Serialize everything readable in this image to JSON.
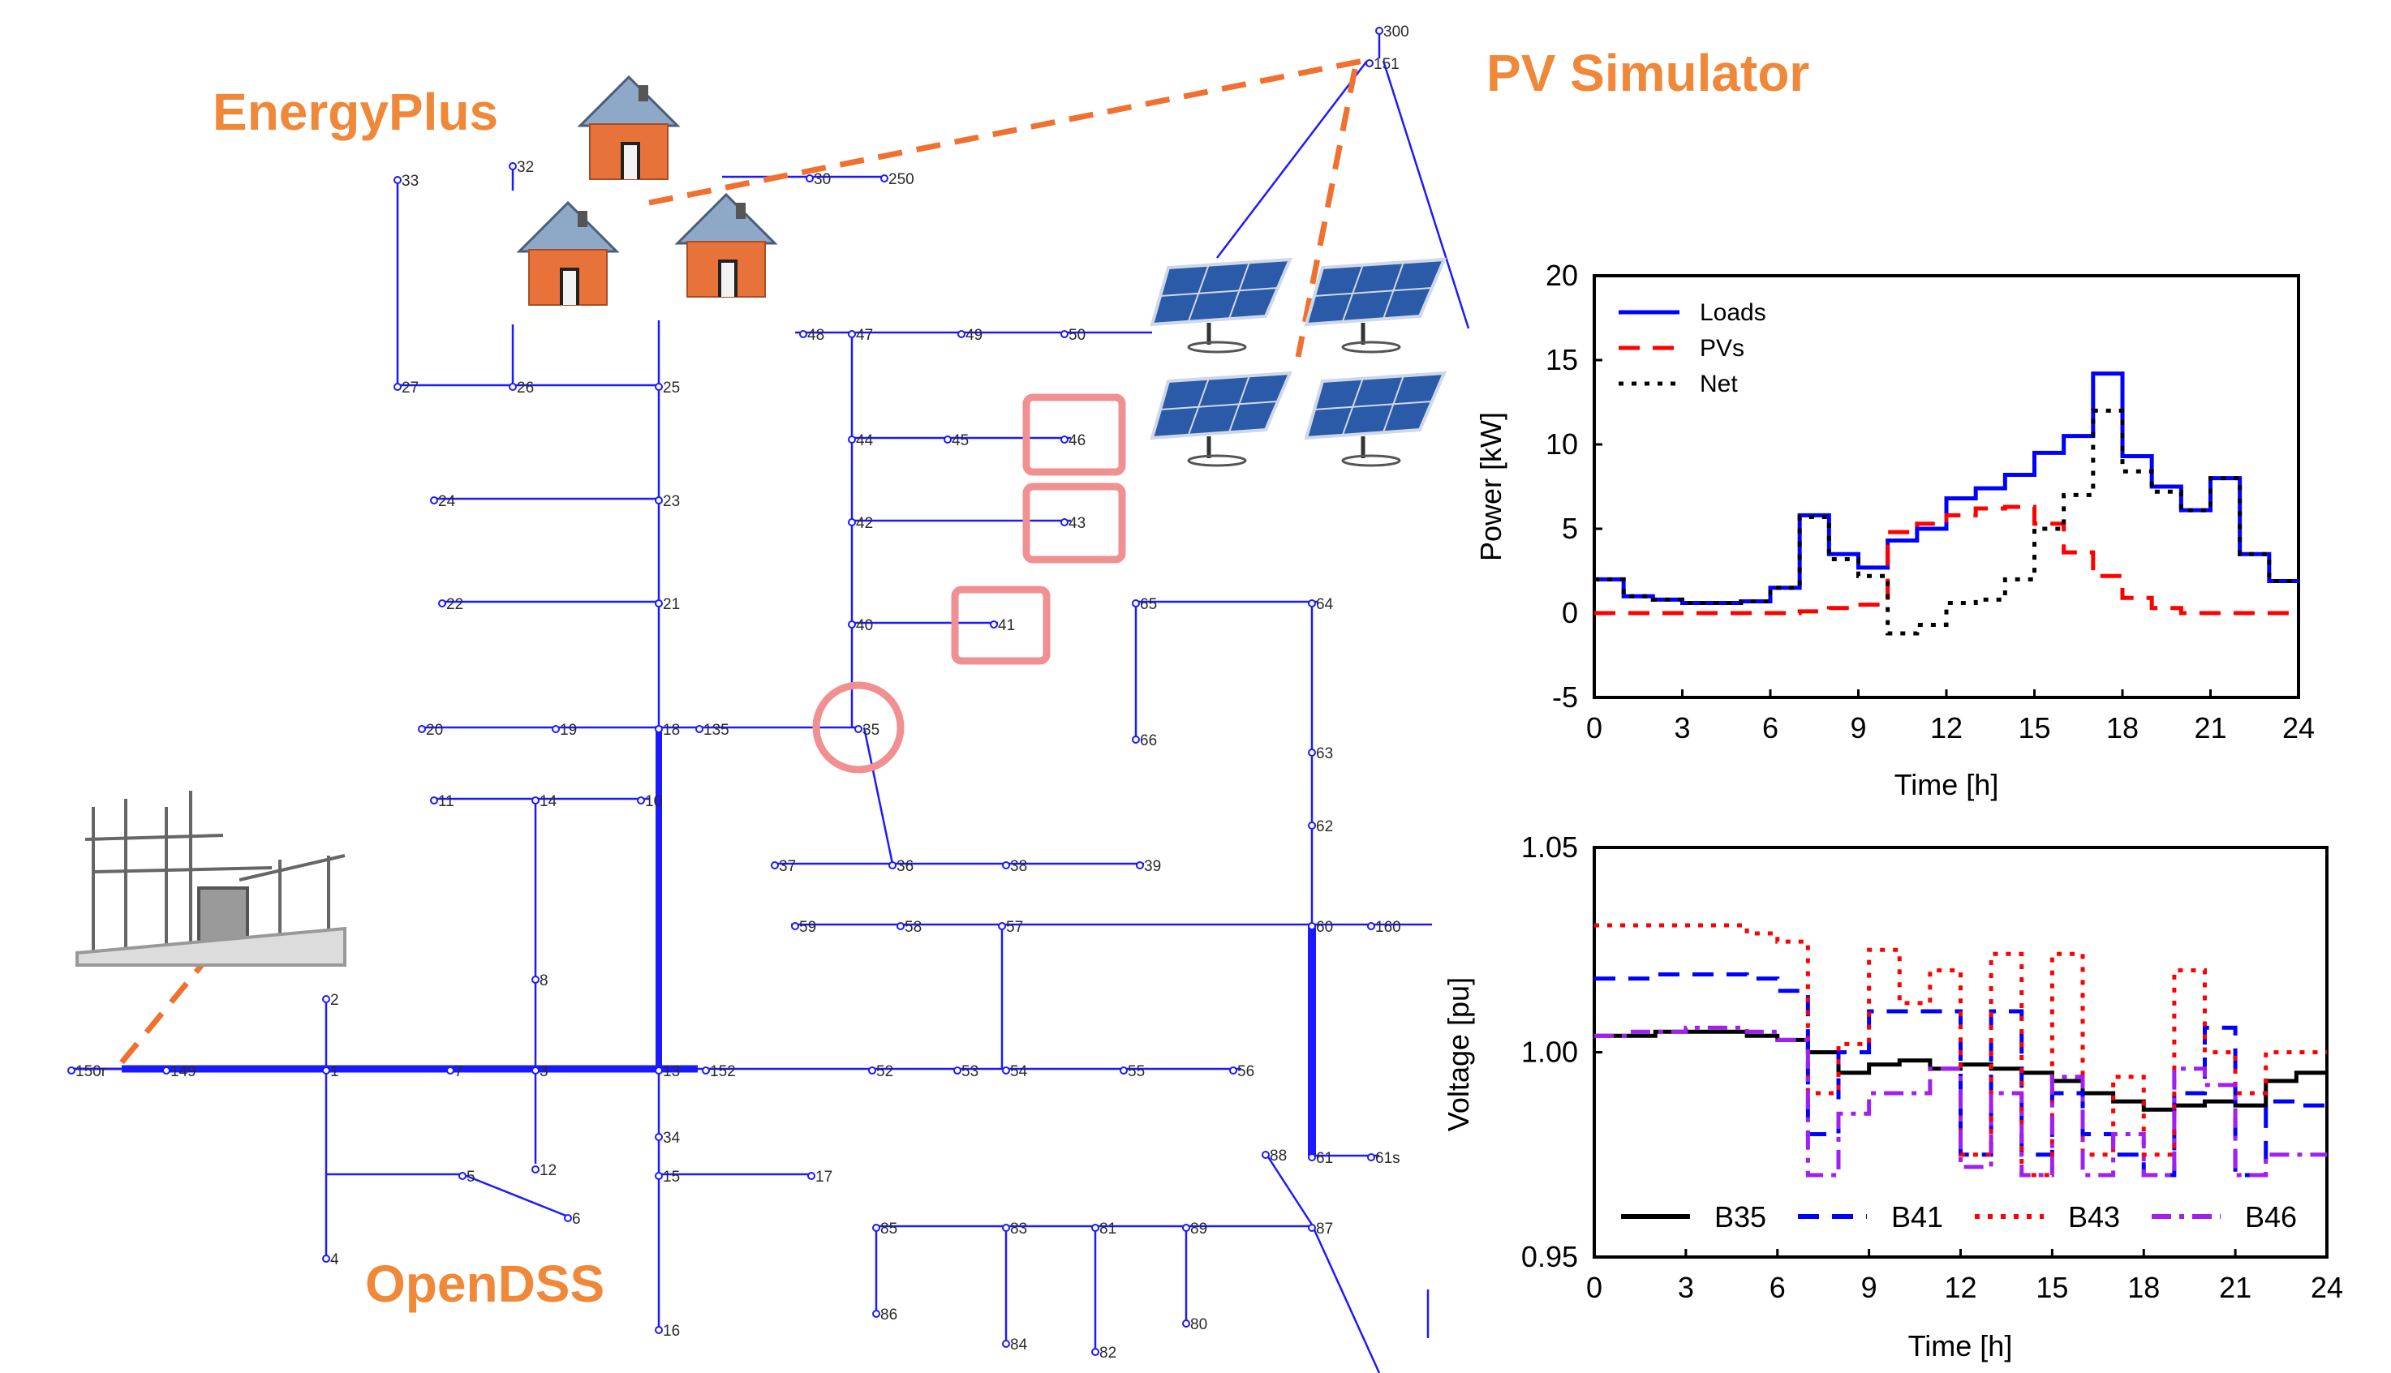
{
  "labels": {
    "energyplus": "EnergyPlus",
    "pv_simulator": "PV Simulator",
    "opendss": "OpenDSS"
  },
  "network": {
    "nodes": [
      "300",
      "151",
      "33",
      "32",
      "30",
      "250",
      "27",
      "26",
      "25",
      "48",
      "47",
      "49",
      "50",
      "44",
      "45",
      "46",
      "24",
      "23",
      "42",
      "43",
      "22",
      "21",
      "40",
      "41",
      "65",
      "64",
      "20",
      "19",
      "18",
      "135",
      "35",
      "66",
      "63",
      "11",
      "14",
      "10",
      "62",
      "37",
      "36",
      "38",
      "39",
      "59",
      "58",
      "57",
      "60",
      "160",
      "8",
      "2",
      "150r",
      "149",
      "1",
      "7",
      "3",
      "13",
      "152",
      "52",
      "53",
      "54",
      "55",
      "56",
      "34",
      "12",
      "5",
      "6",
      "15",
      "17",
      "4",
      "88",
      "61",
      "61s",
      "85",
      "83",
      "81",
      "89",
      "87",
      "86",
      "80",
      "16",
      "84",
      "82"
    ],
    "highlighted_buses": [
      "35",
      "41",
      "43",
      "46"
    ]
  },
  "chart_data": [
    {
      "type": "line",
      "xlabel": "Time [h]",
      "ylabel": "Power [kW]",
      "xlim": [
        0,
        24
      ],
      "ylim": [
        -5,
        20
      ],
      "xticks": [
        0,
        3,
        6,
        9,
        12,
        15,
        18,
        21,
        24
      ],
      "yticks": [
        -5,
        0,
        5,
        10,
        15,
        20
      ],
      "legend_position": "top-left",
      "step": true,
      "series": [
        {
          "name": "Loads",
          "color": "#0000ff",
          "dash": "solid",
          "x": [
            0,
            1,
            2,
            3,
            4,
            5,
            6,
            7,
            8,
            9,
            10,
            11,
            12,
            13,
            14,
            15,
            16,
            17,
            18,
            19,
            20,
            21,
            22,
            23,
            24
          ],
          "y": [
            2,
            1,
            0.8,
            0.6,
            0.6,
            0.7,
            1.5,
            5.8,
            3.5,
            2.7,
            4.3,
            5,
            6.8,
            7.4,
            8.2,
            9.5,
            10.5,
            14.2,
            9.3,
            7.5,
            6.1,
            8,
            3.5,
            1.9,
            1.9
          ]
        },
        {
          "name": "PVs",
          "color": "#ff0000",
          "dash": "dashed",
          "x": [
            0,
            1,
            2,
            3,
            4,
            5,
            6,
            7,
            8,
            9,
            10,
            11,
            12,
            13,
            14,
            15,
            16,
            17,
            18,
            19,
            20,
            21,
            22,
            23,
            24
          ],
          "y": [
            0,
            0,
            0,
            0,
            0,
            0,
            0,
            0.1,
            0.3,
            0.5,
            4.8,
            5.3,
            5.8,
            6.2,
            6.3,
            5.3,
            3.6,
            2.2,
            0.9,
            0.3,
            0,
            0,
            0,
            0,
            0
          ]
        },
        {
          "name": "Net",
          "color": "#000000",
          "dash": "dotted",
          "x": [
            0,
            1,
            2,
            3,
            4,
            5,
            6,
            7,
            8,
            9,
            10,
            11,
            12,
            13,
            14,
            15,
            16,
            17,
            18,
            19,
            20,
            21,
            22,
            23,
            24
          ],
          "y": [
            2,
            1,
            0.8,
            0.6,
            0.6,
            0.7,
            1.5,
            5.7,
            3.2,
            2.2,
            -1.2,
            -0.7,
            0.6,
            0.8,
            2.0,
            5.0,
            7.0,
            12.0,
            8.4,
            7.2,
            6.1,
            8,
            3.5,
            1.9,
            1.9
          ]
        }
      ]
    },
    {
      "type": "line",
      "xlabel": "Time [h]",
      "ylabel": "Voltage [pu]",
      "xlim": [
        0,
        24
      ],
      "ylim": [
        0.95,
        1.05
      ],
      "xticks": [
        0,
        3,
        6,
        9,
        12,
        15,
        18,
        21,
        24
      ],
      "yticks": [
        0.95,
        1.0,
        1.05
      ],
      "ytick_labels": [
        "0.95",
        "1.00",
        "1.05"
      ],
      "legend_position": "bottom",
      "step": true,
      "series": [
        {
          "name": "B35",
          "color": "#000000",
          "dash": "solid",
          "x": [
            0,
            1,
            2,
            3,
            4,
            5,
            6,
            7,
            8,
            9,
            10,
            11,
            12,
            13,
            14,
            15,
            16,
            17,
            18,
            19,
            20,
            21,
            22,
            23,
            24
          ],
          "y": [
            1.004,
            1.004,
            1.005,
            1.005,
            1.005,
            1.004,
            1.003,
            1.0,
            0.995,
            0.997,
            0.998,
            0.996,
            0.997,
            0.996,
            0.995,
            0.993,
            0.99,
            0.988,
            0.986,
            0.987,
            0.988,
            0.987,
            0.993,
            0.995,
            0.995
          ]
        },
        {
          "name": "B41",
          "color": "#0000ff",
          "dash": "dashed",
          "x": [
            0,
            1,
            2,
            3,
            4,
            5,
            6,
            7,
            8,
            9,
            10,
            11,
            12,
            13,
            14,
            15,
            16,
            17,
            18,
            19,
            20,
            21,
            22,
            23,
            24
          ],
          "y": [
            1.018,
            1.018,
            1.019,
            1.019,
            1.019,
            1.018,
            1.015,
            0.98,
            1.0,
            1.01,
            1.01,
            1.01,
            0.975,
            1.01,
            0.975,
            0.99,
            0.98,
            0.975,
            0.97,
            0.99,
            1.006,
            0.97,
            0.988,
            0.987,
            0.987
          ]
        },
        {
          "name": "B43",
          "color": "#ff0000",
          "dash": "dotted",
          "x": [
            0,
            1,
            2,
            3,
            4,
            5,
            6,
            7,
            8,
            9,
            10,
            11,
            12,
            13,
            14,
            15,
            16,
            17,
            18,
            19,
            20,
            21,
            22,
            23,
            24
          ],
          "y": [
            1.031,
            1.031,
            1.031,
            1.031,
            1.031,
            1.029,
            1.027,
            0.99,
            1.002,
            1.025,
            1.012,
            1.02,
            0.975,
            1.024,
            0.97,
            1.024,
            0.975,
            0.994,
            0.975,
            1.02,
            1.0,
            0.99,
            1.0,
            1.0,
            1.0
          ]
        },
        {
          "name": "B46",
          "color": "#a020f0",
          "dash": "dashdot",
          "x": [
            0,
            1,
            2,
            3,
            4,
            5,
            6,
            7,
            8,
            9,
            10,
            11,
            12,
            13,
            14,
            15,
            16,
            17,
            18,
            19,
            20,
            21,
            22,
            23,
            24
          ],
          "y": [
            1.004,
            1.005,
            1.005,
            1.006,
            1.006,
            1.005,
            1.003,
            0.97,
            0.985,
            0.99,
            0.99,
            0.996,
            0.972,
            0.99,
            0.97,
            0.994,
            0.97,
            0.98,
            0.97,
            0.996,
            0.992,
            0.97,
            0.975,
            0.975,
            0.975
          ]
        }
      ]
    }
  ],
  "colors": {
    "feeder_line": "#1a1aff",
    "accent_orange": "#f0883a",
    "highlight_pink": "#f08080"
  }
}
